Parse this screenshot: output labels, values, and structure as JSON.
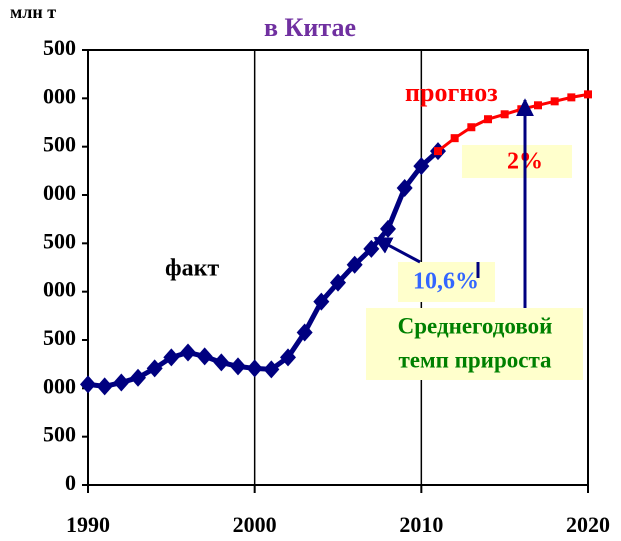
{
  "chart_data": {
    "type": "line",
    "title": "в Китае",
    "y_label": "млн т",
    "series": [
      {
        "name": "факт",
        "color": "#000080",
        "x": [
          1990,
          1991,
          1992,
          1993,
          1994,
          1995,
          1996,
          1997,
          1998,
          1999,
          2000,
          2001,
          2002,
          2003,
          2004,
          2005,
          2006,
          2007,
          2008,
          2009,
          2010,
          2011
        ],
        "values": [
          1041,
          1020,
          1060,
          1110,
          1206,
          1320,
          1371,
          1330,
          1268,
          1227,
          1206,
          1196,
          1320,
          1577,
          1897,
          2093,
          2278,
          2443,
          2650,
          3072,
          3299,
          3454
        ]
      },
      {
        "name": "прогноз",
        "color": "#ff0000",
        "x": [
          2011,
          2012,
          2013,
          2014,
          2015,
          2016,
          2017,
          2018,
          2019,
          2020
        ],
        "values": [
          3454,
          3588,
          3701,
          3784,
          3835,
          3887,
          3928,
          3969,
          4010,
          4041
        ]
      }
    ],
    "annotations": {
      "fact_rate": "10,6%",
      "forecast_rate": "2%",
      "note": [
        "Среднегодовой",
        "темп прироста"
      ]
    },
    "xlim": [
      1990,
      2020
    ],
    "xticks": [
      1990,
      2000,
      2010,
      2020
    ],
    "ylim": [
      0,
      4500
    ],
    "yticks": [
      0,
      500,
      {
        "value": 1000,
        "label": "000"
      },
      {
        "value": 1500,
        "label": "500"
      },
      {
        "value": 2000,
        "label": "000"
      },
      {
        "value": 2500,
        "label": "500"
      },
      {
        "value": 3000,
        "label": "000"
      },
      {
        "value": 3500,
        "label": "500"
      },
      {
        "value": 4000,
        "label": "000"
      },
      {
        "value": 4500,
        "label": "500"
      }
    ]
  }
}
